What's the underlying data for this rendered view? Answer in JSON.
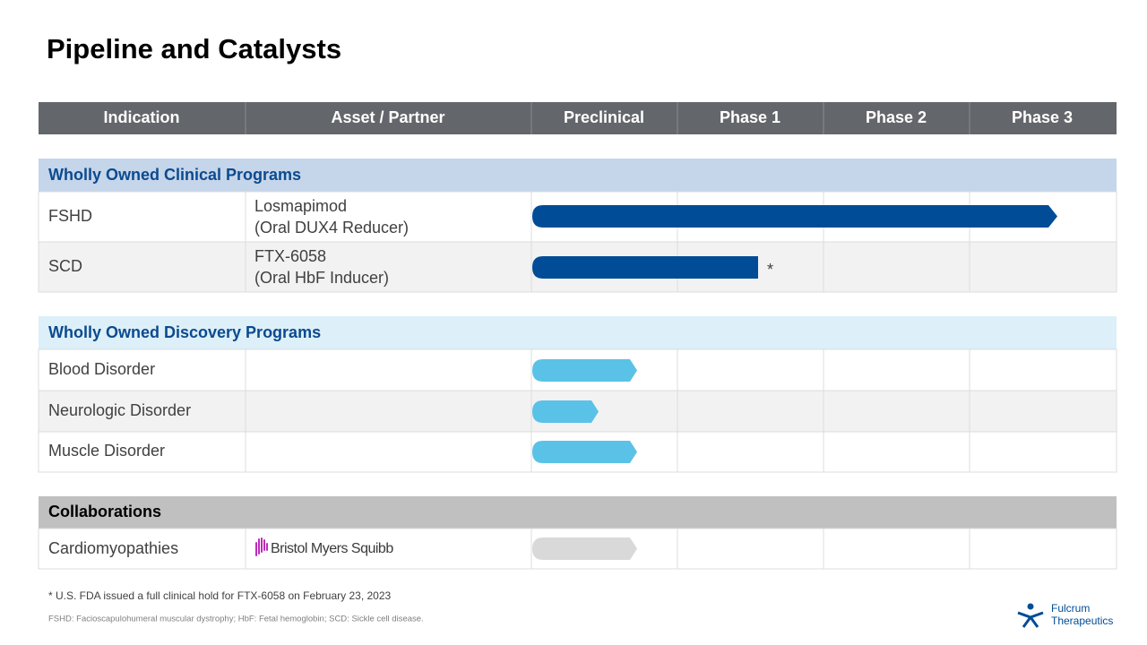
{
  "title": "Pipeline and Catalysts",
  "table": {
    "columns": [
      "Indication",
      "Asset / Partner",
      "Preclinical",
      "Phase 1",
      "Phase 2",
      "Phase 3"
    ],
    "sections": [
      {
        "title": "Wholly Owned Clinical Programs",
        "rows": [
          {
            "indication": "FSHD",
            "asset": [
              "Losmapimod",
              "(Oral DUX4 Reducer)"
            ]
          },
          {
            "indication": "SCD",
            "asset": [
              "FTX-6058",
              "(Oral HbF Inducer)"
            ],
            "note_mark": "*"
          }
        ]
      },
      {
        "title": "Wholly Owned Discovery Programs",
        "rows": [
          {
            "indication": "Blood Disorder"
          },
          {
            "indication": "Neurologic Disorder"
          },
          {
            "indication": "Muscle Disorder"
          }
        ]
      },
      {
        "title": "Collaborations",
        "rows": [
          {
            "indication": "Cardiomyopathies",
            "partner": "Bristol Myers Squibb"
          }
        ]
      }
    ]
  },
  "footnotes": [
    "* U.S. FDA issued a full clinical hold for FTX-6058  on February 23, 2023",
    "FSHD: Facioscapulohumeral muscular dystrophy; HbF: Fetal hemoglobin; SCD: Sickle cell disease."
  ],
  "logo": [
    "Fulcrum",
    "Therapeutics"
  ]
}
